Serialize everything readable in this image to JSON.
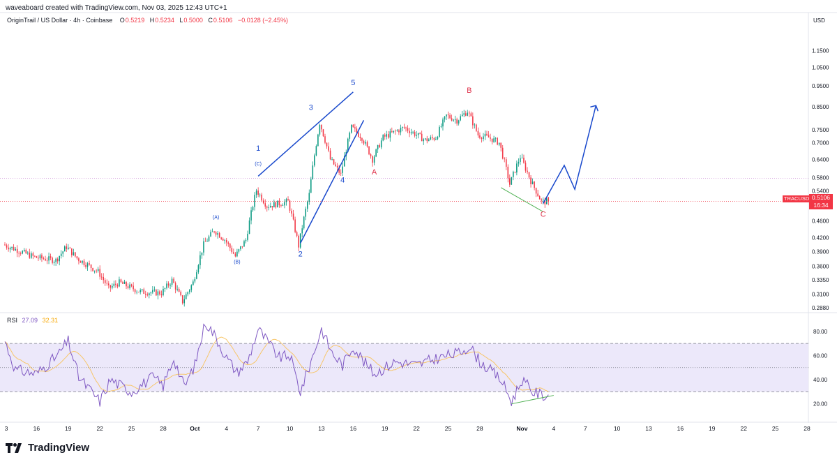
{
  "header": {
    "created_by": "waveaboard created with TradingView.com, Nov 03, 2025 12:43 UTC+1"
  },
  "legend": {
    "symbol": "OriginTrail / US Dollar · 4h · Coinbase",
    "open_label": "O",
    "open": "0.5219",
    "high_label": "H",
    "high": "0.5234",
    "low_label": "L",
    "low": "0.5000",
    "close_label": "C",
    "close": "0.5106",
    "change": "−0.0128 (−2.45%)"
  },
  "price_axis": {
    "currency": "USD",
    "last_price": "0.5106",
    "countdown": "16:34",
    "ticker": "TRACUSD"
  },
  "rsi_legend": {
    "name": "RSI",
    "value": "27.09",
    "ma_value": "32.31"
  },
  "branding": {
    "logo_text": "TradingView"
  },
  "colors": {
    "up": "#089981",
    "down": "#f23645",
    "wave_blue": "#1848cc",
    "label_red": "#e0334b",
    "rsi_line": "#7e57c2",
    "rsi_ma": "#f7c66a",
    "rsi_band": "#ece8fa",
    "divergence": "#4caf50"
  },
  "chart_data": [
    {
      "type": "candlestick",
      "title": "OriginTrail / US Dollar · 4h · Coinbase",
      "y_scale": "log",
      "y_ticks": [
        "1.1500",
        "1.0500",
        "0.9500",
        "0.8500",
        "0.7500",
        "0.7000",
        "0.6400",
        "0.5800",
        "0.5400",
        "0.4600",
        "0.4200",
        "0.3900",
        "0.3600",
        "0.3350",
        "0.3100",
        "0.2880"
      ],
      "ylim": [
        0.286,
        1.26
      ],
      "x_ticks": [
        "3",
        "16",
        "19",
        "22",
        "25",
        "28",
        "Oct",
        "4",
        "7",
        "10",
        "13",
        "16",
        "19",
        "22",
        "25",
        "28",
        "Nov",
        "4",
        "7",
        "10",
        "13",
        "16",
        "19",
        "22",
        "25",
        "28"
      ],
      "x_range": [
        "2025-09-13",
        "2025-11-28"
      ],
      "anchors": [
        [
          "2025-09-13",
          0.405
        ],
        [
          "2025-09-16",
          0.378
        ],
        [
          "2025-09-18",
          0.372
        ],
        [
          "2025-09-19",
          0.4
        ],
        [
          "2025-09-20",
          0.376
        ],
        [
          "2025-09-22",
          0.35
        ],
        [
          "2025-09-23",
          0.32
        ],
        [
          "2025-09-24",
          0.33
        ],
        [
          "2025-09-26",
          0.314
        ],
        [
          "2025-09-28",
          0.312
        ],
        [
          "2025-09-29",
          0.334
        ],
        [
          "2025-09-30",
          0.298
        ],
        [
          "2025-10-01",
          0.33
        ],
        [
          "2025-10-02",
          0.405
        ],
        [
          "2025-10-03",
          0.437
        ],
        [
          "2025-10-04",
          0.416
        ],
        [
          "2025-10-05",
          0.38
        ],
        [
          "2025-10-06",
          0.415
        ],
        [
          "2025-10-07",
          0.543
        ],
        [
          "2025-10-08",
          0.498
        ],
        [
          "2025-10-10",
          0.51
        ],
        [
          "2025-10-11",
          0.402
        ],
        [
          "2025-10-12",
          0.53
        ],
        [
          "2025-10-13",
          0.78
        ],
        [
          "2025-10-14",
          0.64
        ],
        [
          "2025-10-15",
          0.59
        ],
        [
          "2025-10-16",
          0.76
        ],
        [
          "2025-10-17",
          0.72
        ],
        [
          "2025-10-18",
          0.64
        ],
        [
          "2025-10-19",
          0.72
        ],
        [
          "2025-10-21",
          0.76
        ],
        [
          "2025-10-23",
          0.71
        ],
        [
          "2025-10-24",
          0.72
        ],
        [
          "2025-10-25",
          0.81
        ],
        [
          "2025-10-26",
          0.79
        ],
        [
          "2025-10-27",
          0.83
        ],
        [
          "2025-10-28",
          0.73
        ],
        [
          "2025-10-29",
          0.72
        ],
        [
          "2025-10-30",
          0.7
        ],
        [
          "2025-10-31",
          0.56
        ],
        [
          "2025-11-01",
          0.65
        ],
        [
          "2025-11-02",
          0.57
        ],
        [
          "2025-11-03",
          0.51
        ]
      ],
      "last": {
        "open": 0.5219,
        "high": 0.5234,
        "low": 0.5,
        "close": 0.5106
      },
      "annotations": [
        {
          "text": "(A)",
          "date": "2025-10-03",
          "price": 0.465
        },
        {
          "text": "(B)",
          "date": "2025-10-05",
          "price": 0.366
        },
        {
          "text": "(C)",
          "date": "2025-10-07",
          "price": 0.62
        },
        {
          "text": "1",
          "date": "2025-10-07",
          "price": 0.67
        },
        {
          "text": "2",
          "date": "2025-10-11",
          "price": 0.38
        },
        {
          "text": "3",
          "date": "2025-10-12",
          "price": 0.835
        },
        {
          "text": "4",
          "date": "2025-10-15",
          "price": 0.565
        },
        {
          "text": "5",
          "date": "2025-10-16",
          "price": 0.955
        },
        {
          "text": "A",
          "date": "2025-10-18",
          "price": 0.59
        },
        {
          "text": "B",
          "date": "2025-10-27",
          "price": 0.915
        },
        {
          "text": "C",
          "date": "2025-11-03",
          "price": 0.47
        }
      ],
      "projection": [
        [
          "2025-11-03",
          0.505
        ],
        [
          "2025-11-05",
          0.62
        ],
        [
          "2025-11-06",
          0.545
        ],
        [
          "2025-11-08",
          0.855
        ]
      ]
    },
    {
      "type": "line",
      "title": "RSI",
      "series": [
        {
          "name": "RSI",
          "last": 27.09
        },
        {
          "name": "RSI-based MA",
          "last": 32.31
        }
      ],
      "y_ticks": [
        "80.00",
        "60.00",
        "40.00",
        "20.00"
      ],
      "bands": [
        30,
        50,
        70
      ],
      "anchors": [
        [
          "2025-09-13",
          72
        ],
        [
          "2025-09-14",
          48
        ],
        [
          "2025-09-16",
          45
        ],
        [
          "2025-09-18",
          60
        ],
        [
          "2025-09-19",
          72
        ],
        [
          "2025-09-20",
          42
        ],
        [
          "2025-09-22",
          22
        ],
        [
          "2025-09-23",
          40
        ],
        [
          "2025-09-25",
          30
        ],
        [
          "2025-09-27",
          42
        ],
        [
          "2025-09-28",
          35
        ],
        [
          "2025-09-29",
          58
        ],
        [
          "2025-09-30",
          34
        ],
        [
          "2025-10-01",
          52
        ],
        [
          "2025-10-02",
          88
        ],
        [
          "2025-10-03",
          75
        ],
        [
          "2025-10-04",
          58
        ],
        [
          "2025-10-05",
          46
        ],
        [
          "2025-10-06",
          55
        ],
        [
          "2025-10-07",
          82
        ],
        [
          "2025-10-09",
          58
        ],
        [
          "2025-10-10",
          60
        ],
        [
          "2025-10-11",
          30
        ],
        [
          "2025-10-12",
          55
        ],
        [
          "2025-10-13",
          82
        ],
        [
          "2025-10-14",
          62
        ],
        [
          "2025-10-15",
          52
        ],
        [
          "2025-10-16",
          68
        ],
        [
          "2025-10-17",
          55
        ],
        [
          "2025-10-18",
          45
        ],
        [
          "2025-10-20",
          55
        ],
        [
          "2025-10-22",
          52
        ],
        [
          "2025-10-24",
          58
        ],
        [
          "2025-10-26",
          62
        ],
        [
          "2025-10-27",
          68
        ],
        [
          "2025-10-28",
          55
        ],
        [
          "2025-10-30",
          40
        ],
        [
          "2025-10-31",
          22
        ],
        [
          "2025-11-01",
          40
        ],
        [
          "2025-11-02",
          30
        ],
        [
          "2025-11-03",
          27
        ]
      ]
    }
  ]
}
